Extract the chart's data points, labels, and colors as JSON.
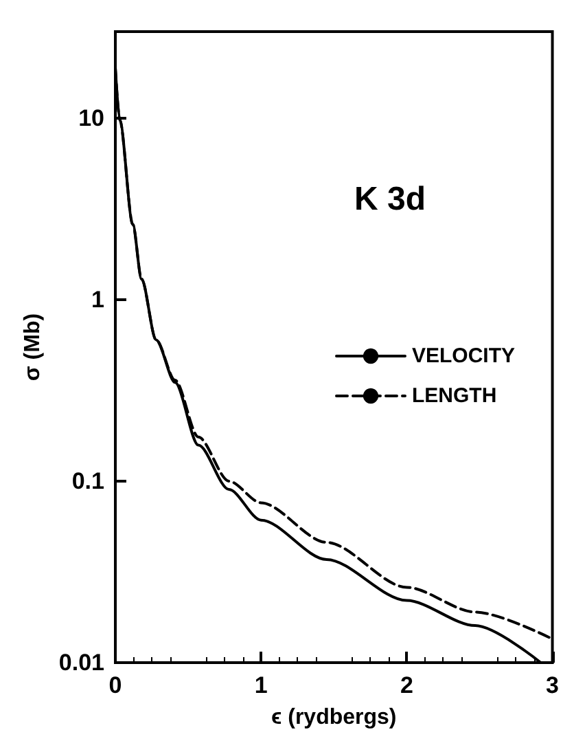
{
  "chart_data": {
    "type": "line",
    "title": "K 3d",
    "xlabel": "ϵ (rydbergs)",
    "ylabel": "σ (Mb)",
    "xlim": [
      0,
      3
    ],
    "xticks": [
      0,
      1,
      2,
      3
    ],
    "ylim": [
      0.01,
      30
    ],
    "yticks": [
      0.01,
      0.1,
      1,
      10
    ],
    "log": "y",
    "grid": false,
    "legend": "right",
    "marker": "none",
    "series": [
      {
        "name": "VELOCITY",
        "color": "#000000",
        "line_style": "solid",
        "x": [
          0,
          0.03,
          0.12,
          0.18,
          0.28,
          0.41,
          0.57,
          0.78,
          1.0,
          1.45,
          2.0,
          2.47,
          2.92
        ],
        "values": [
          19,
          9.8,
          2.6,
          1.3,
          0.6,
          0.35,
          0.158,
          0.09,
          0.061,
          0.037,
          0.022,
          0.016,
          0.01
        ]
      },
      {
        "name": "LENGTH",
        "color": "#000000",
        "line_style": "dashed",
        "x": [
          0,
          0.03,
          0.12,
          0.18,
          0.28,
          0.41,
          0.57,
          0.78,
          1.0,
          1.45,
          2.0,
          2.47,
          3.0
        ],
        "values": [
          19,
          9.8,
          2.6,
          1.3,
          0.6,
          0.36,
          0.175,
          0.1,
          0.076,
          0.046,
          0.026,
          0.019,
          0.0135
        ]
      }
    ]
  }
}
